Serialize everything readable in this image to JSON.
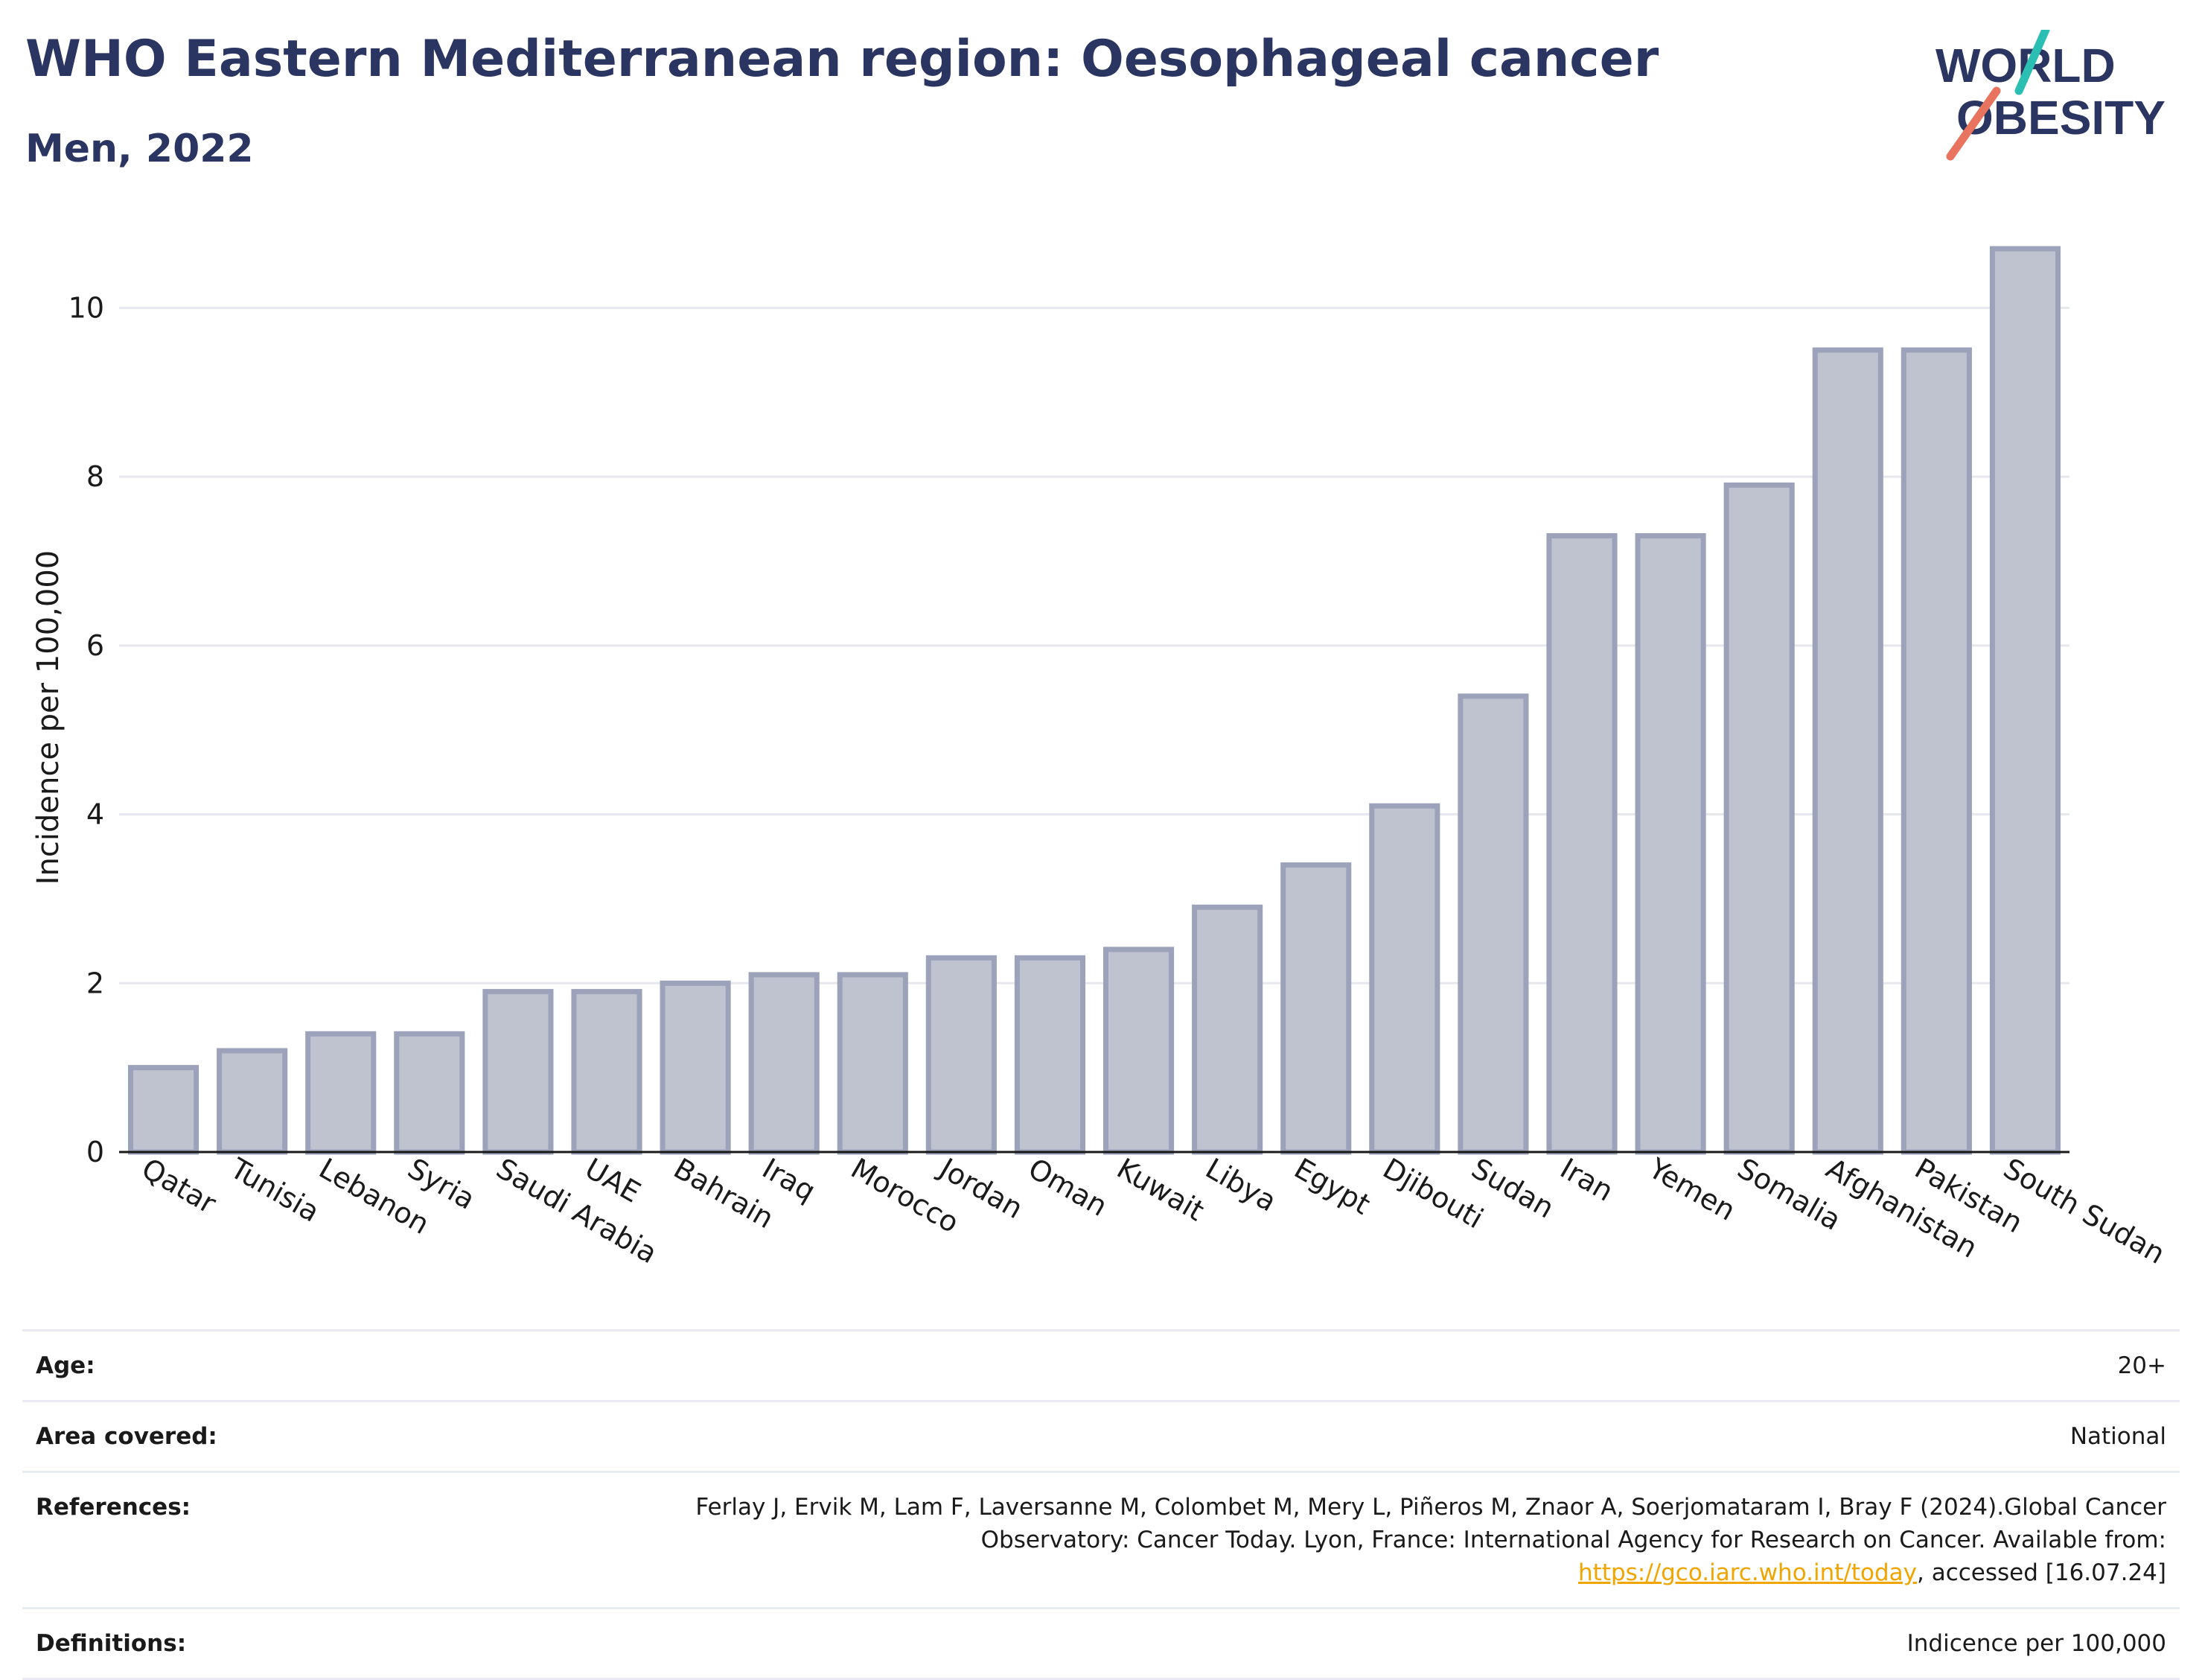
{
  "header": {
    "title": "WHO Eastern Mediterranean region: Oesophageal cancer",
    "subtitle": "Men, 2022"
  },
  "logo": {
    "line1": "WORLD",
    "line2": "OBESITY",
    "accent_colors": [
      "#2bbfb3",
      "#e8735f"
    ],
    "text_color": "#2b3561"
  },
  "colors": {
    "bar_fill": "#bfc3cf",
    "bar_stroke": "#9ba2b9",
    "gridline": "#e6e8ee",
    "title": "#2b3561",
    "link": "#f0a500"
  },
  "chart_data": {
    "type": "bar",
    "title": "",
    "xlabel": "",
    "ylabel": "Incidence per 100,000",
    "ylim": [
      0,
      11
    ],
    "yticks": [
      0,
      2,
      4,
      6,
      8,
      10
    ],
    "grid": true,
    "categories": [
      "Qatar",
      "Tunisia",
      "Lebanon",
      "Syria",
      "Saudi Arabia",
      "UAE",
      "Bahrain",
      "Iraq",
      "Morocco",
      "Jordan",
      "Oman",
      "Kuwait",
      "Libya",
      "Egypt",
      "Djibouti",
      "Sudan",
      "Iran",
      "Yemen",
      "Somalia",
      "Afghanistan",
      "Pakistan",
      "South Sudan"
    ],
    "values": [
      1.0,
      1.2,
      1.4,
      1.4,
      1.9,
      1.9,
      2.0,
      2.1,
      2.1,
      2.3,
      2.3,
      2.4,
      2.9,
      3.4,
      4.1,
      5.4,
      7.3,
      7.3,
      7.9,
      9.5,
      9.5,
      10.7
    ]
  },
  "info": {
    "age_label": "Age:",
    "age_value": "20+",
    "area_label": "Area covered:",
    "area_value": "National",
    "references_label": "References:",
    "references_text_1": "Ferlay J, Ervik M, Lam F, Laversanne M, Colombet M, Mery L, Piñeros M, Znaor A, Soerjomataram I, Bray F (2024).Global Cancer Observatory: Cancer Today. Lyon, France: International Agency for Research on Cancer. Available from: ",
    "references_link": "https://gco.iarc.who.int/today",
    "references_text_2": ", accessed [16.07.24]",
    "definitions_label": "Definitions:",
    "definitions_value": "Indicence per 100,000"
  }
}
